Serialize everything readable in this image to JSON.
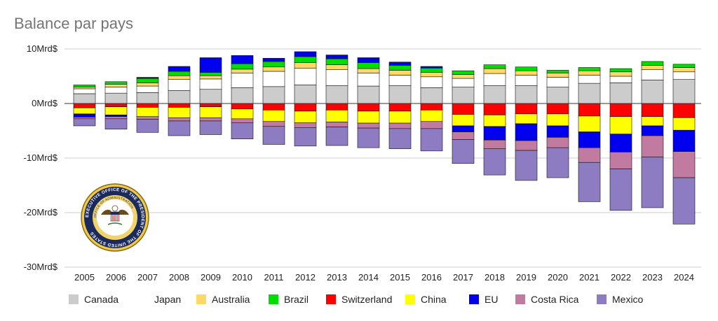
{
  "chart_data": {
    "type": "bar",
    "stacked": true,
    "title": "Balance par pays",
    "ylim": [
      -30,
      10
    ],
    "yticks": [
      10,
      0,
      -10,
      -20,
      -30
    ],
    "ytick_labels": [
      "10Mrd$",
      "0Mrd$",
      "-10Mrd$",
      "-20Mrd$",
      "-30Mrd$"
    ],
    "grid": true,
    "legend_position": "bottom",
    "categories": [
      "2005",
      "2006",
      "2007",
      "2008",
      "2009",
      "2010",
      "2011",
      "2012",
      "2013",
      "2014",
      "2015",
      "2016",
      "2017",
      "2018",
      "2019",
      "2020",
      "2021",
      "2022",
      "2023",
      "2024"
    ],
    "series": [
      {
        "name": "Canada",
        "color": "#cccccc",
        "values": [
          1.8,
          1.9,
          2.0,
          2.4,
          2.6,
          2.9,
          3.1,
          3.4,
          3.3,
          3.2,
          3.3,
          2.9,
          3.0,
          3.3,
          3.3,
          3.0,
          3.7,
          3.8,
          4.3,
          4.4
        ]
      },
      {
        "name": "Japan",
        "color": "#ffffff",
        "values": [
          0.9,
          1.1,
          1.2,
          2.0,
          1.9,
          2.7,
          2.8,
          3.1,
          2.9,
          2.4,
          1.9,
          2.0,
          1.6,
          2.2,
          1.9,
          1.8,
          1.5,
          1.2,
          1.9,
          1.4
        ]
      },
      {
        "name": "Australia",
        "color": "#ffd966",
        "values": [
          0.3,
          0.5,
          0.6,
          0.7,
          0.6,
          0.7,
          0.8,
          1.0,
          0.9,
          0.8,
          0.9,
          0.8,
          0.7,
          0.9,
          0.8,
          0.8,
          0.8,
          0.8,
          0.8,
          0.8
        ]
      },
      {
        "name": "Brazil",
        "color": "#00dd00",
        "values": [
          0.4,
          0.5,
          0.8,
          0.8,
          0.6,
          1.0,
          1.0,
          1.1,
          1.1,
          1.1,
          0.9,
          0.8,
          0.7,
          0.7,
          0.7,
          0.5,
          0.6,
          0.6,
          0.7,
          0.6
        ]
      },
      {
        "name": "Switzerland",
        "color": "#ff0000",
        "values": [
          -0.8,
          -0.6,
          -0.7,
          -0.7,
          -0.6,
          -1.0,
          -1.2,
          -1.4,
          -1.2,
          -1.4,
          -1.4,
          -1.2,
          -2.0,
          -2.1,
          -1.9,
          -1.9,
          -2.3,
          -2.4,
          -2.4,
          -2.6
        ]
      },
      {
        "name": "China",
        "color": "#ffff00",
        "values": [
          -1.1,
          -1.5,
          -1.7,
          -1.9,
          -2.0,
          -1.8,
          -2.1,
          -2.1,
          -2.2,
          -2.2,
          -2.2,
          -2.1,
          -2.1,
          -2.1,
          -1.8,
          -2.2,
          -2.9,
          -3.2,
          -1.7,
          -2.3
        ]
      },
      {
        "name": "EU",
        "color": "#0000ee",
        "values": [
          -0.6,
          -0.3,
          0.2,
          0.9,
          2.7,
          1.5,
          0.6,
          0.9,
          0.7,
          0.9,
          0.6,
          0.3,
          -1.1,
          -2.5,
          -3.1,
          -2.1,
          -2.9,
          -3.3,
          -1.8,
          -3.9
        ]
      },
      {
        "name": "Costa Rica",
        "color": "#c27ba0",
        "values": [
          -0.3,
          -0.4,
          -0.5,
          -0.6,
          -0.6,
          -0.7,
          -0.9,
          -0.9,
          -0.9,
          -0.9,
          -1.0,
          -1.3,
          -1.4,
          -1.6,
          -1.8,
          -1.9,
          -2.7,
          -3.1,
          -3.9,
          -4.8
        ]
      },
      {
        "name": "Mexico",
        "color": "#8e7cc3",
        "values": [
          -1.3,
          -1.9,
          -2.4,
          -2.7,
          -2.5,
          -3.0,
          -3.3,
          -3.4,
          -3.4,
          -3.6,
          -3.7,
          -4.1,
          -4.4,
          -4.8,
          -5.5,
          -5.5,
          -7.2,
          -7.6,
          -9.3,
          -8.5
        ]
      }
    ]
  },
  "seal": {
    "text_top": "EXECUTIVE OFFICE OF THE PRESIDENT OF THE UNITED STATES",
    "text_inner": "OFFICE OF ADMINISTRATION"
  }
}
